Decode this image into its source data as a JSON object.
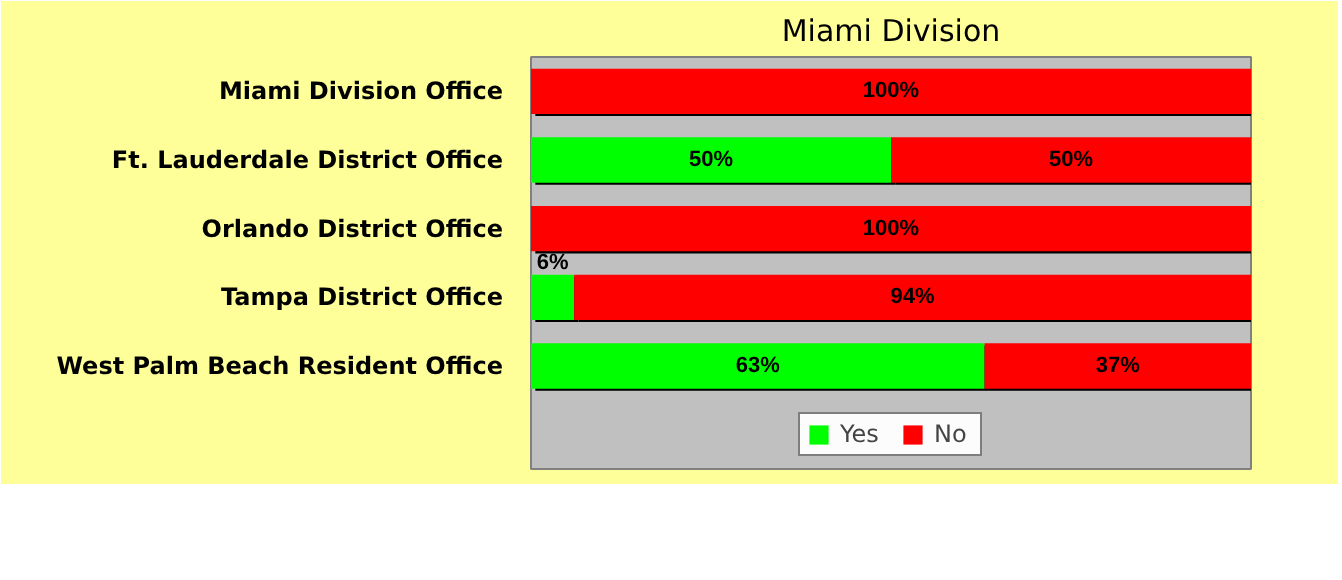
{
  "chart_data": {
    "type": "bar",
    "orientation": "horizontal",
    "stacked": true,
    "title": "Miami Division",
    "categories": [
      "Miami Division Office",
      "Ft. Lauderdale District Office",
      "Orlando District Office",
      "Tampa District Office",
      "West Palm Beach Resident Office"
    ],
    "series": [
      {
        "name": "Yes",
        "color": "#00ff00",
        "values": [
          0,
          50,
          0,
          6,
          63
        ],
        "value_labels": [
          null,
          "50%",
          null,
          "6%",
          "63%"
        ]
      },
      {
        "name": "No",
        "color": "#ff0000",
        "values": [
          100,
          50,
          100,
          94,
          37
        ],
        "value_labels": [
          "100%",
          "50%",
          "100%",
          "94%",
          "37%"
        ]
      }
    ],
    "xlim": [
      0,
      100
    ],
    "tick_labels": "y",
    "legend": "bottom"
  }
}
